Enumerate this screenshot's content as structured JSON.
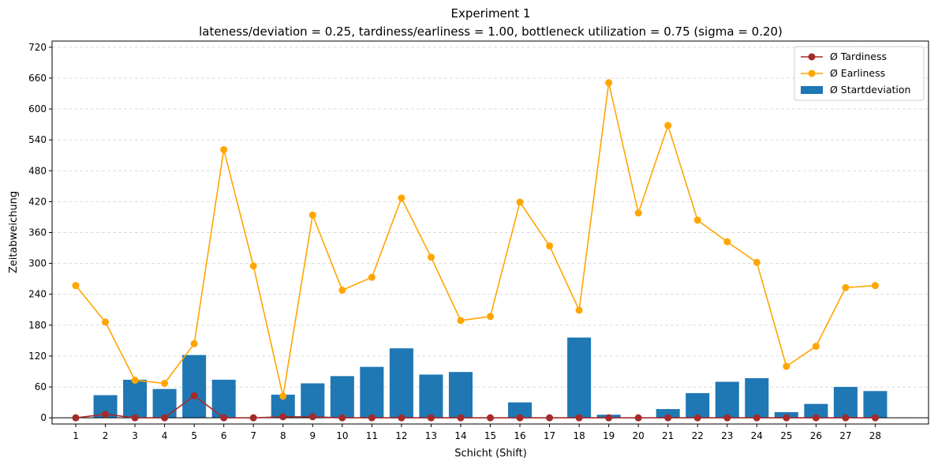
{
  "chart_data": {
    "type": "bar",
    "title": "Experiment 1",
    "subtitle": "lateness/deviation = 0.25, tardiness/earliness = 1.00, bottleneck utilization = 0.75 (sigma = 0.20)",
    "xlabel": "Schicht (Shift)",
    "ylabel": "Zeitabweichung",
    "ylim": [
      -12,
      732
    ],
    "yticks": [
      0,
      60,
      120,
      180,
      240,
      300,
      360,
      420,
      480,
      540,
      600,
      660,
      720
    ],
    "grid": "y-dashed",
    "legend_position": "top-right",
    "categories": [
      "1",
      "2",
      "3",
      "4",
      "5",
      "6",
      "7",
      "8",
      "9",
      "10",
      "11",
      "12",
      "13",
      "14",
      "15",
      "16",
      "17",
      "18",
      "19",
      "20",
      "21",
      "22",
      "23",
      "24",
      "25",
      "26",
      "27",
      "28"
    ],
    "series": [
      {
        "name": "Ø Tardiness",
        "type": "line",
        "color": "#a52a2a",
        "values": [
          0,
          7,
          0,
          0,
          43,
          0,
          0,
          2,
          2,
          0,
          0,
          0,
          0,
          0,
          0,
          0,
          0,
          0,
          0,
          0,
          0,
          0,
          0,
          0,
          0,
          0,
          0,
          0
        ]
      },
      {
        "name": "Ø Earliness",
        "type": "line",
        "color": "#ffa500",
        "values": [
          257,
          186,
          73,
          67,
          144,
          521,
          295,
          42,
          394,
          248,
          273,
          427,
          312,
          189,
          197,
          419,
          334,
          209,
          651,
          398,
          568,
          384,
          342,
          302,
          100,
          139,
          253,
          257
        ]
      },
      {
        "name": "Ø Startdeviation",
        "type": "bar",
        "color": "#1f77b4",
        "values": [
          0,
          44,
          74,
          56,
          122,
          74,
          0,
          45,
          67,
          81,
          99,
          135,
          84,
          89,
          0,
          30,
          0,
          156,
          6,
          0,
          17,
          48,
          70,
          77,
          11,
          27,
          60,
          52
        ]
      }
    ]
  }
}
